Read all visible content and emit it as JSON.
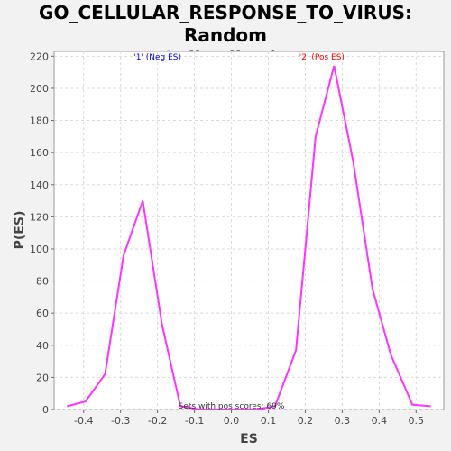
{
  "title_line1": "GO_CELLULAR_RESPONSE_TO_VIRUS: Random",
  "title_line2": "ES distribution",
  "chart_data": {
    "type": "line",
    "xlabel": "ES",
    "ylabel": "P(ES)",
    "xlim": [
      -0.48,
      0.575
    ],
    "ylim": [
      0,
      223
    ],
    "xticks": [
      "-0.4",
      "-0.3",
      "-0.2",
      "-0.1",
      "0.0",
      "0.1",
      "0.2",
      "0.3",
      "0.4",
      "0.5"
    ],
    "xtick_values": [
      -0.4,
      -0.3,
      -0.2,
      -0.1,
      0.0,
      0.1,
      0.2,
      0.3,
      0.4,
      0.5
    ],
    "yticks": [
      0,
      20,
      40,
      60,
      80,
      100,
      120,
      140,
      160,
      180,
      200,
      220
    ],
    "grid": true,
    "series_color": "#ff33ff",
    "x": [
      -0.445,
      -0.395,
      -0.342,
      -0.292,
      -0.24,
      -0.188,
      -0.138,
      -0.085,
      -0.035,
      0.015,
      0.068,
      0.118,
      0.175,
      0.228,
      0.278,
      0.33,
      0.382,
      0.432,
      0.49,
      0.54
    ],
    "y": [
      2,
      5,
      22,
      96,
      130,
      53,
      2,
      0,
      0,
      0,
      0,
      2,
      37,
      170,
      214,
      154,
      75,
      34,
      3,
      2
    ],
    "annotations": [
      {
        "text": "'1' (Neg ES)",
        "x": -0.2,
        "y": 218,
        "color": "#0000ff"
      },
      {
        "text": "'2' (Pos ES)",
        "x": 0.245,
        "y": 218,
        "color": "#ff0000"
      },
      {
        "text": "Sets with pos scores: 69%",
        "x": 0.0,
        "y": 0.5,
        "color": "#333333"
      }
    ]
  }
}
